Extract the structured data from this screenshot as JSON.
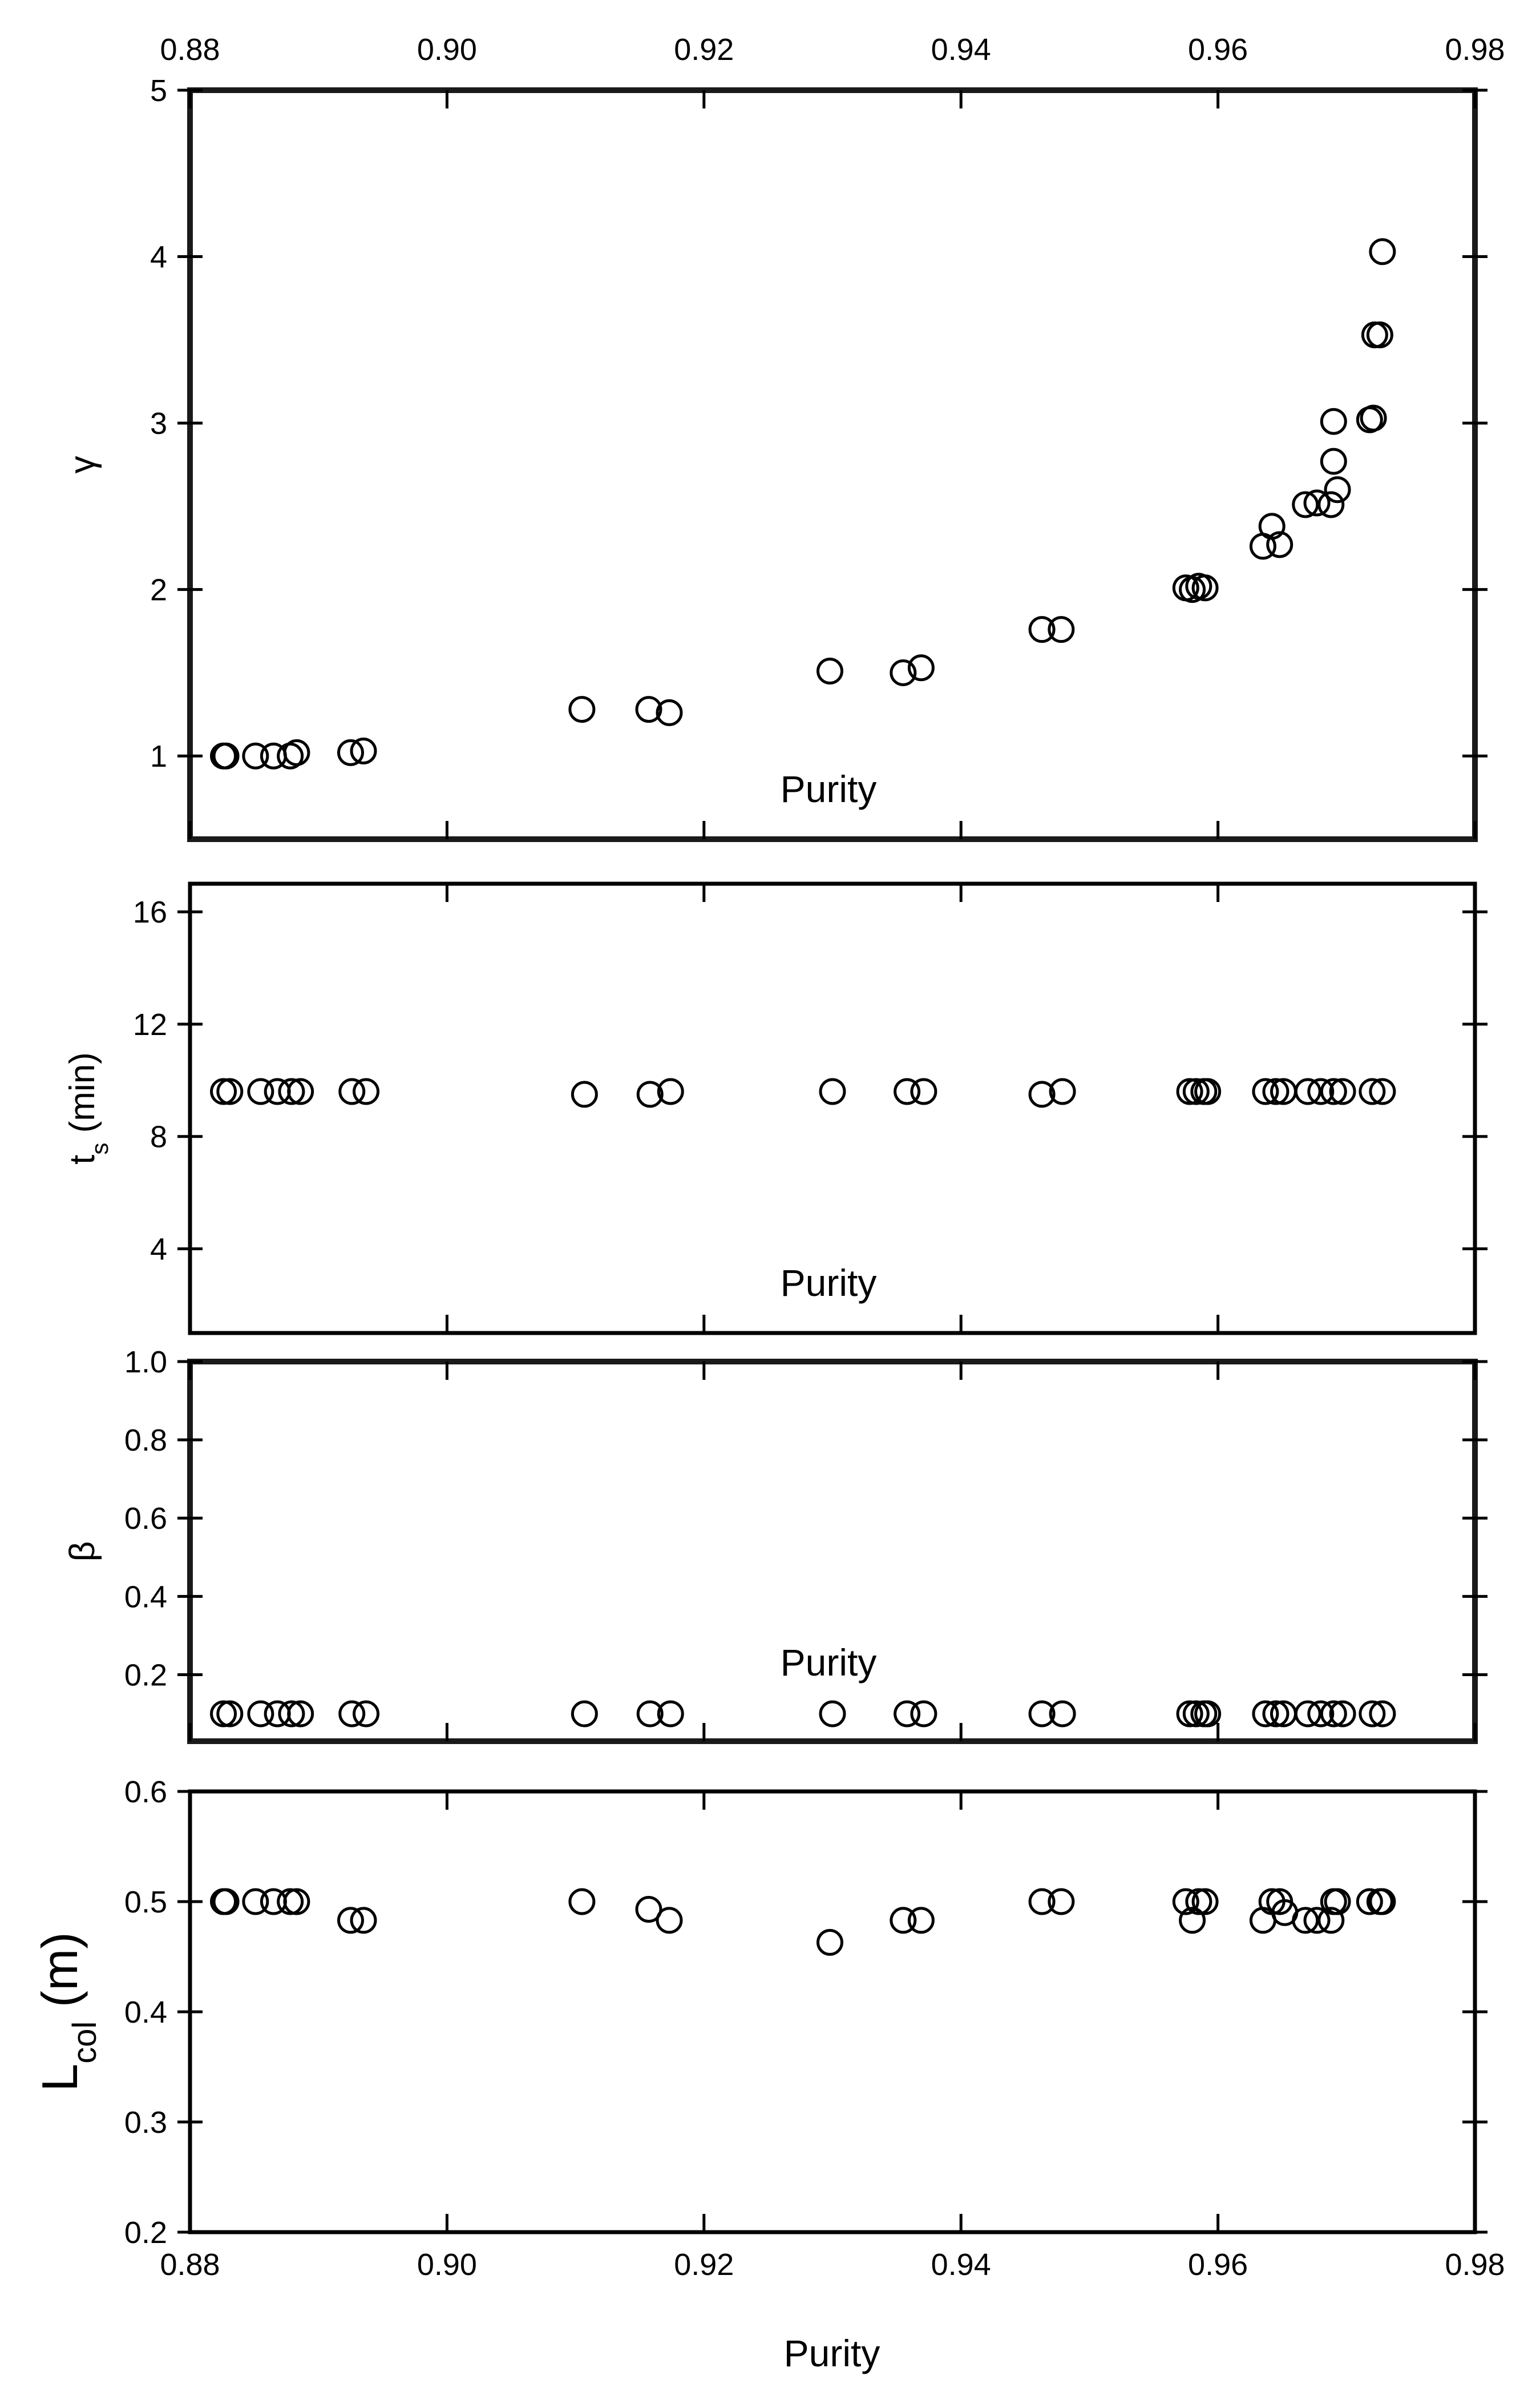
{
  "chart_data": {
    "type": "scatter",
    "layout": "stacked-panels",
    "x_axis": {
      "label": "Purity",
      "range": [
        0.88,
        0.98
      ],
      "tick_values": [
        0.88,
        0.9,
        0.92,
        0.94,
        0.96,
        0.98
      ],
      "tick_labels": [
        "0.88",
        "0.90",
        "0.92",
        "0.94",
        "0.96",
        "0.98"
      ]
    },
    "panels": [
      {
        "id": "gamma",
        "ylabel": "γ",
        "ylim": [
          0.5,
          5
        ],
        "yticks": [
          1,
          2,
          3,
          4,
          5
        ],
        "ytick_labels": [
          "1",
          "2",
          "3",
          "4",
          "5"
        ],
        "inner_label": "Purity",
        "points": [
          [
            0.8826,
            1.0
          ],
          [
            0.8828,
            1.0
          ],
          [
            0.8851,
            1.0
          ],
          [
            0.8865,
            1.0
          ],
          [
            0.8878,
            1.0
          ],
          [
            0.8883,
            1.02
          ],
          [
            0.8925,
            1.02
          ],
          [
            0.8935,
            1.03
          ],
          [
            0.9105,
            1.28
          ],
          [
            0.9157,
            1.28
          ],
          [
            0.9173,
            1.26
          ],
          [
            0.9298,
            1.51
          ],
          [
            0.9355,
            1.5
          ],
          [
            0.9369,
            1.53
          ],
          [
            0.9463,
            1.76
          ],
          [
            0.9478,
            1.76
          ],
          [
            0.9575,
            2.01
          ],
          [
            0.958,
            2.0
          ],
          [
            0.9585,
            2.02
          ],
          [
            0.959,
            2.01
          ],
          [
            0.9635,
            2.26
          ],
          [
            0.9642,
            2.38
          ],
          [
            0.9648,
            2.27
          ],
          [
            0.9668,
            2.51
          ],
          [
            0.9677,
            2.52
          ],
          [
            0.9688,
            2.51
          ],
          [
            0.969,
            3.01
          ],
          [
            0.969,
            2.77
          ],
          [
            0.9693,
            2.6
          ],
          [
            0.9718,
            3.02
          ],
          [
            0.9721,
            3.03
          ],
          [
            0.9722,
            3.53
          ],
          [
            0.9726,
            3.53
          ],
          [
            0.9728,
            4.03
          ]
        ]
      },
      {
        "id": "ts",
        "ylabel": "ts (min)",
        "ylabel_main": "t",
        "ylabel_sub": "s",
        "ylabel_rest": " (min)",
        "ylim": [
          1,
          17
        ],
        "yticks": [
          4,
          8,
          12,
          16
        ],
        "ytick_labels": [
          "4",
          "8",
          "12",
          "16"
        ],
        "inner_label": "Purity",
        "points": [
          [
            0.8826,
            9.6
          ],
          [
            0.8831,
            9.6
          ],
          [
            0.8855,
            9.6
          ],
          [
            0.8868,
            9.6
          ],
          [
            0.8879,
            9.6
          ],
          [
            0.8886,
            9.6
          ],
          [
            0.8926,
            9.6
          ],
          [
            0.8937,
            9.6
          ],
          [
            0.9107,
            9.5
          ],
          [
            0.9158,
            9.5
          ],
          [
            0.9174,
            9.6
          ],
          [
            0.93,
            9.6
          ],
          [
            0.9358,
            9.6
          ],
          [
            0.9371,
            9.6
          ],
          [
            0.9463,
            9.5
          ],
          [
            0.9479,
            9.6
          ],
          [
            0.9578,
            9.6
          ],
          [
            0.9583,
            9.6
          ],
          [
            0.9589,
            9.6
          ],
          [
            0.9592,
            9.6
          ],
          [
            0.9637,
            9.6
          ],
          [
            0.9645,
            9.6
          ],
          [
            0.9651,
            9.6
          ],
          [
            0.967,
            9.6
          ],
          [
            0.968,
            9.6
          ],
          [
            0.969,
            9.6
          ],
          [
            0.9697,
            9.6
          ],
          [
            0.972,
            9.6
          ],
          [
            0.9728,
            9.6
          ]
        ]
      },
      {
        "id": "beta",
        "ylabel": "β",
        "ylim": [
          0.03,
          1.0
        ],
        "yticks": [
          0.2,
          0.4,
          0.6,
          0.8,
          1.0
        ],
        "ytick_labels": [
          "0.2",
          "0.4",
          "0.6",
          "0.8",
          "1.0"
        ],
        "inner_label": "Purity",
        "points": [
          [
            0.8826,
            0.1
          ],
          [
            0.8831,
            0.1
          ],
          [
            0.8855,
            0.1
          ],
          [
            0.8868,
            0.1
          ],
          [
            0.8879,
            0.1
          ],
          [
            0.8886,
            0.1
          ],
          [
            0.8926,
            0.1
          ],
          [
            0.8937,
            0.1
          ],
          [
            0.9107,
            0.1
          ],
          [
            0.9158,
            0.1
          ],
          [
            0.9174,
            0.1
          ],
          [
            0.93,
            0.1
          ],
          [
            0.9358,
            0.1
          ],
          [
            0.9371,
            0.1
          ],
          [
            0.9463,
            0.1
          ],
          [
            0.9479,
            0.1
          ],
          [
            0.9578,
            0.1
          ],
          [
            0.9583,
            0.1
          ],
          [
            0.9589,
            0.1
          ],
          [
            0.9592,
            0.1
          ],
          [
            0.9637,
            0.1
          ],
          [
            0.9645,
            0.1
          ],
          [
            0.9651,
            0.1
          ],
          [
            0.967,
            0.1
          ],
          [
            0.968,
            0.1
          ],
          [
            0.969,
            0.1
          ],
          [
            0.9697,
            0.1
          ],
          [
            0.972,
            0.1
          ],
          [
            0.9728,
            0.1
          ]
        ]
      },
      {
        "id": "lcol",
        "ylabel": "Lcol (m)",
        "ylabel_main": "L",
        "ylabel_sub": "col",
        "ylabel_rest": " (m)",
        "ylim": [
          0.2,
          0.6
        ],
        "yticks": [
          0.2,
          0.3,
          0.4,
          0.5,
          0.6
        ],
        "ytick_labels": [
          "0.2",
          "0.3",
          "0.4",
          "0.5",
          "0.6"
        ],
        "inner_label": "",
        "points": [
          [
            0.8826,
            0.5
          ],
          [
            0.8828,
            0.5
          ],
          [
            0.8851,
            0.5
          ],
          [
            0.8865,
            0.5
          ],
          [
            0.8878,
            0.5
          ],
          [
            0.8883,
            0.5
          ],
          [
            0.8925,
            0.483
          ],
          [
            0.8935,
            0.483
          ],
          [
            0.9105,
            0.5
          ],
          [
            0.9157,
            0.493
          ],
          [
            0.9173,
            0.483
          ],
          [
            0.9298,
            0.463
          ],
          [
            0.9355,
            0.483
          ],
          [
            0.9369,
            0.483
          ],
          [
            0.9463,
            0.5
          ],
          [
            0.9478,
            0.5
          ],
          [
            0.9575,
            0.5
          ],
          [
            0.958,
            0.483
          ],
          [
            0.9585,
            0.5
          ],
          [
            0.959,
            0.5
          ],
          [
            0.9635,
            0.483
          ],
          [
            0.9642,
            0.5
          ],
          [
            0.9648,
            0.5
          ],
          [
            0.9652,
            0.49
          ],
          [
            0.9668,
            0.483
          ],
          [
            0.9677,
            0.483
          ],
          [
            0.9688,
            0.483
          ],
          [
            0.969,
            0.5
          ],
          [
            0.9693,
            0.5
          ],
          [
            0.9718,
            0.5
          ],
          [
            0.9726,
            0.5
          ],
          [
            0.9728,
            0.5
          ]
        ]
      }
    ]
  }
}
